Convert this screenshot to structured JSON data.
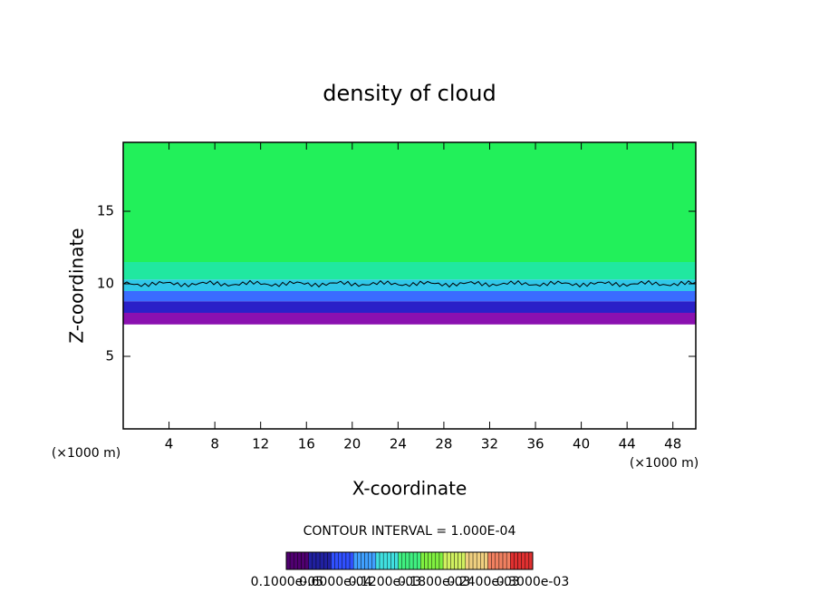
{
  "chart_data": {
    "type": "contour",
    "title": "density of cloud",
    "xlabel": "X-coordinate",
    "ylabel": "Z-coordinate",
    "x_unit": "(×1000 m)",
    "x_unit_right": "(×1000 m)",
    "note": "CONTOUR INTERVAL = 1.000E-04",
    "xlim": [
      0,
      50
    ],
    "ylim": [
      0,
      19.75
    ],
    "xticks": [
      4,
      8,
      12,
      16,
      20,
      24,
      28,
      32,
      36,
      40,
      44,
      48
    ],
    "yticks": [
      5,
      10,
      15
    ],
    "layers": [
      {
        "z": [
          7.2,
          8.0
        ],
        "color": "#8a10b0"
      },
      {
        "z": [
          8.0,
          8.8
        ],
        "color": "#2a20c8"
      },
      {
        "z": [
          8.8,
          9.5
        ],
        "color": "#3a6cff"
      },
      {
        "z": [
          9.5,
          10.3
        ],
        "color": "#30c8e8"
      },
      {
        "z": [
          10.3,
          11.5
        ],
        "color": "#20e8a0"
      },
      {
        "z": [
          11.5,
          19.75
        ],
        "color": "#22f05a"
      }
    ],
    "contour_z": 10,
    "colorbar_colors": [
      "#500070",
      "#2020a0",
      "#3050ff",
      "#40a0ff",
      "#40e0e0",
      "#40f080",
      "#80f040",
      "#d0f060",
      "#f0d080",
      "#f08060",
      "#e03030"
    ],
    "colorbar_lim": [
      0,
      0.0003
    ],
    "colorbar_ticks": [
      {
        "value": 1e-06,
        "label": "0.1000e-05"
      },
      {
        "value": 6e-05,
        "label": "0.6000e-04"
      },
      {
        "value": 0.00012,
        "label": "0.1200e-03"
      },
      {
        "value": 0.00018,
        "label": "0.1800e-03"
      },
      {
        "value": 0.00024,
        "label": "0.2400e-03"
      },
      {
        "value": 0.0003,
        "label": "0.3000e-03"
      }
    ]
  }
}
